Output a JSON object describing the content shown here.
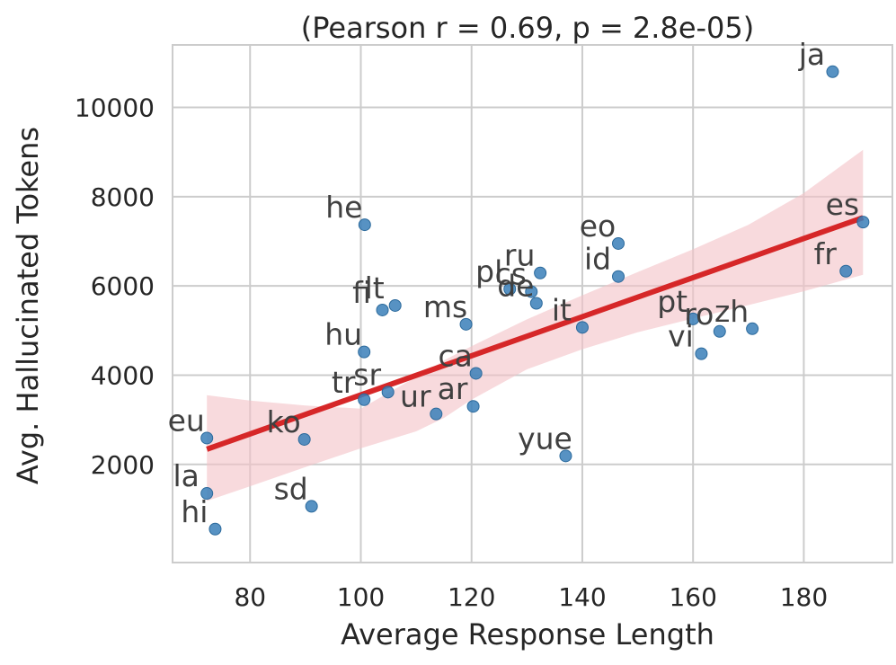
{
  "chart_data": {
    "type": "scatter",
    "title": "(Pearson r = 0.69, p = 2.8e-05)",
    "xlabel": "Average Response Length",
    "ylabel": "Avg. Hallucinated Tokens",
    "xlim": [
      66,
      196
    ],
    "ylim": [
      -200,
      11400
    ],
    "xticks": [
      80,
      100,
      120,
      140,
      160,
      180
    ],
    "yticks": [
      2000,
      4000,
      6000,
      8000,
      10000
    ],
    "grid": true,
    "colors": {
      "point": "#3a7fb8",
      "regression_line": "#d62728",
      "confidence_band": "#f4c2c6",
      "grid": "#cccccc",
      "label": "#404040"
    },
    "points": [
      {
        "label": "ja",
        "x": 185.2,
        "y": 10800
      },
      {
        "label": "es",
        "x": 190.7,
        "y": 7430
      },
      {
        "label": "fr",
        "x": 187.6,
        "y": 6330
      },
      {
        "label": "he",
        "x": 100.7,
        "y": 7370
      },
      {
        "label": "eo",
        "x": 146.5,
        "y": 6950
      },
      {
        "label": "id",
        "x": 146.5,
        "y": 6210
      },
      {
        "label": "ru",
        "x": 132.4,
        "y": 6290
      },
      {
        "label": "pl",
        "x": 126.9,
        "y": 5930
      },
      {
        "label": "cs",
        "x": 130.8,
        "y": 5870
      },
      {
        "label": "de",
        "x": 131.7,
        "y": 5610
      },
      {
        "label": "fi",
        "x": 103.9,
        "y": 5460
      },
      {
        "label": "lt",
        "x": 106.2,
        "y": 5560
      },
      {
        "label": "ms",
        "x": 119.0,
        "y": 5140
      },
      {
        "label": "it",
        "x": 140.0,
        "y": 5070
      },
      {
        "label": "pt",
        "x": 160.0,
        "y": 5260
      },
      {
        "label": "ro",
        "x": 164.8,
        "y": 4980
      },
      {
        "label": "zh",
        "x": 170.7,
        "y": 5040
      },
      {
        "label": "vi",
        "x": 161.5,
        "y": 4480
      },
      {
        "label": "hu",
        "x": 100.6,
        "y": 4520
      },
      {
        "label": "ca",
        "x": 120.8,
        "y": 4040
      },
      {
        "label": "sr",
        "x": 104.9,
        "y": 3620
      },
      {
        "label": "tr",
        "x": 100.6,
        "y": 3450
      },
      {
        "label": "ar",
        "x": 120.3,
        "y": 3300
      },
      {
        "label": "ur",
        "x": 113.6,
        "y": 3130
      },
      {
        "label": "eu",
        "x": 72.2,
        "y": 2590
      },
      {
        "label": "ko",
        "x": 89.8,
        "y": 2560
      },
      {
        "label": "yue",
        "x": 137.0,
        "y": 2190
      },
      {
        "label": "la",
        "x": 72.2,
        "y": 1350
      },
      {
        "label": "sd",
        "x": 91.1,
        "y": 1060
      },
      {
        "label": "hi",
        "x": 73.7,
        "y": 550
      }
    ],
    "regression": {
      "x": [
        72.2,
        190.7
      ],
      "y": [
        2340,
        7530
      ]
    },
    "confidence_band": {
      "x": [
        72.2,
        80,
        90,
        100,
        110,
        115,
        120,
        130,
        140,
        150,
        160,
        170,
        180,
        190.7
      ],
      "upper": [
        3550,
        3430,
        3320,
        3250,
        3960,
        4330,
        4650,
        5250,
        5790,
        6310,
        6820,
        7370,
        8080,
        9050
      ],
      "lower": [
        1180,
        1510,
        1940,
        2360,
        2740,
        3040,
        3450,
        4130,
        4580,
        4960,
        5270,
        5570,
        5880,
        6250
      ]
    }
  }
}
